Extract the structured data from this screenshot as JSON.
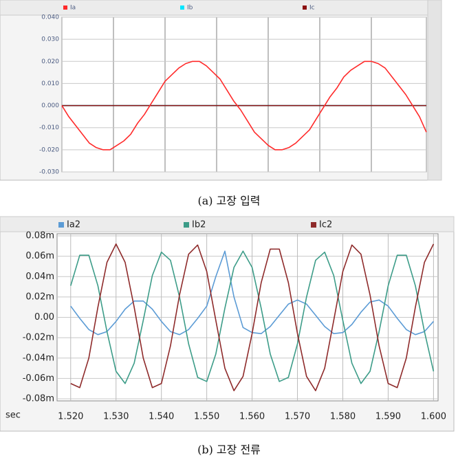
{
  "chart_data": [
    {
      "type": "line",
      "caption": "(a) 고장 입력",
      "ylim": [
        -0.03,
        0.04
      ],
      "yticks": [
        {
          "value": 0.04,
          "label": "0.040"
        },
        {
          "value": 0.03,
          "label": "0.030"
        },
        {
          "value": 0.02,
          "label": "0.020"
        },
        {
          "value": 0.01,
          "label": "0.010"
        },
        {
          "value": 0,
          "label": "0.000"
        },
        {
          "value": -0.01,
          "label": "-0.010"
        },
        {
          "value": -0.02,
          "label": "-0.020"
        },
        {
          "value": -0.03,
          "label": "-0.030"
        }
      ],
      "grid": true,
      "series": [
        {
          "name": "Ib",
          "color": "#00e5ff",
          "values": [
            0,
            0,
            0,
            0,
            0,
            0,
            0,
            0,
            0,
            0,
            0,
            0,
            0,
            0,
            0,
            0,
            0,
            0,
            0,
            0,
            0,
            0,
            0,
            0,
            0,
            0,
            0,
            0,
            0,
            0,
            0,
            0,
            0,
            0,
            0,
            0,
            0,
            0,
            0,
            0,
            0,
            0,
            0,
            0,
            0,
            0,
            0,
            0,
            0,
            0,
            0,
            0,
            0,
            0
          ]
        },
        {
          "name": "Ic",
          "color": "#8b1010",
          "values": [
            0,
            0,
            0,
            0,
            0,
            0,
            0,
            0,
            0,
            0,
            0,
            0,
            0,
            0,
            0,
            0,
            0,
            0,
            0,
            0,
            0,
            0,
            0,
            0,
            0,
            0,
            0,
            0,
            0,
            0,
            0,
            0,
            0,
            0,
            0,
            0,
            0,
            0,
            0,
            0,
            0,
            0,
            0,
            0,
            0,
            0,
            0,
            0,
            0,
            0,
            0,
            0,
            0,
            0
          ]
        },
        {
          "name": "Ia",
          "color": "#ff2a2a",
          "values": [
            0,
            -0.005,
            -0.009,
            -0.013,
            -0.017,
            -0.019,
            -0.02,
            -0.02,
            -0.018,
            -0.016,
            -0.013,
            -0.008,
            -0.004,
            0.001,
            0.006,
            0.011,
            0.014,
            0.017,
            0.019,
            0.02,
            0.02,
            0.018,
            0.015,
            0.012,
            0.007,
            0.002,
            -0.002,
            -0.007,
            -0.012,
            -0.015,
            -0.018,
            -0.02,
            -0.02,
            -0.019,
            -0.017,
            -0.014,
            -0.011,
            -0.006,
            -0.001,
            0.004,
            0.008,
            0.013,
            0.016,
            0.018,
            0.02,
            0.02,
            0.019,
            0.017,
            0.013,
            0.009,
            0.005,
            0,
            -0.005,
            -0.012
          ]
        }
      ]
    },
    {
      "type": "line",
      "caption": "(b) 고장 전류",
      "xlabel": "sec",
      "xlim": [
        1.517,
        1.601
      ],
      "ylim": [
        -0.08,
        0.08
      ],
      "xticks": [
        {
          "value": 1.52,
          "label": "1.520"
        },
        {
          "value": 1.53,
          "label": "1.530"
        },
        {
          "value": 1.54,
          "label": "1.540"
        },
        {
          "value": 1.55,
          "label": "1.550"
        },
        {
          "value": 1.56,
          "label": "1.560"
        },
        {
          "value": 1.57,
          "label": "1.570"
        },
        {
          "value": 1.58,
          "label": "1.580"
        },
        {
          "value": 1.59,
          "label": "1.590"
        },
        {
          "value": 1.6,
          "label": "1.600"
        }
      ],
      "yticks": [
        {
          "value": 0.08,
          "label": "0.08m"
        },
        {
          "value": 0.06,
          "label": "0.06m"
        },
        {
          "value": 0.04,
          "label": "0.04m"
        },
        {
          "value": 0.02,
          "label": "0.02m"
        },
        {
          "value": 0,
          "label": "0.00"
        },
        {
          "value": -0.02,
          "label": "-0.02m"
        },
        {
          "value": -0.04,
          "label": "-0.04m"
        },
        {
          "value": -0.06,
          "label": "-0.06m"
        },
        {
          "value": -0.08,
          "label": "-0.08m"
        }
      ],
      "grid": true,
      "x": [
        1.52,
        1.522,
        1.524,
        1.526,
        1.528,
        1.53,
        1.532,
        1.534,
        1.536,
        1.538,
        1.54,
        1.542,
        1.544,
        1.546,
        1.548,
        1.55,
        1.552,
        1.554,
        1.556,
        1.558,
        1.56,
        1.562,
        1.564,
        1.566,
        1.568,
        1.57,
        1.572,
        1.574,
        1.576,
        1.578,
        1.58,
        1.582,
        1.584,
        1.586,
        1.588,
        1.59,
        1.592,
        1.594,
        1.596,
        1.598,
        1.6
      ],
      "series": [
        {
          "name": "Ia2",
          "color": "#5b9bd5",
          "values": [
            0.011,
            -0.001,
            -0.012,
            -0.017,
            -0.014,
            -0.004,
            0.008,
            0.016,
            0.016,
            0.008,
            -0.004,
            -0.014,
            -0.017,
            -0.012,
            -0.001,
            0.011,
            0.04,
            0.065,
            0.02,
            -0.01,
            -0.015,
            -0.016,
            -0.009,
            0.002,
            0.013,
            0.017,
            0.013,
            0.002,
            -0.009,
            -0.016,
            -0.015,
            -0.007,
            0.005,
            0.015,
            0.017,
            0.011,
            -0.001,
            -0.012,
            -0.017,
            -0.014,
            -0.004
          ]
        },
        {
          "name": "Ib2",
          "color": "#3c9c88",
          "values": [
            0.031,
            0.061,
            0.061,
            0.031,
            -0.014,
            -0.053,
            -0.065,
            -0.045,
            -0.003,
            0.041,
            0.064,
            0.056,
            0.02,
            -0.026,
            -0.059,
            -0.063,
            -0.036,
            0.009,
            0.049,
            0.065,
            0.049,
            0.009,
            -0.036,
            -0.063,
            -0.059,
            -0.026,
            0.02,
            0.056,
            0.064,
            0.041,
            -0.003,
            -0.045,
            -0.065,
            -0.053,
            -0.014,
            0.031,
            0.061,
            0.061,
            0.031,
            -0.014,
            -0.053
          ]
        },
        {
          "name": "Ic2",
          "color": "#8e2a2a",
          "values": [
            -0.065,
            -0.069,
            -0.04,
            0.01,
            0.054,
            0.072,
            0.054,
            0.01,
            -0.04,
            -0.069,
            -0.065,
            -0.028,
            0.022,
            0.062,
            0.071,
            0.045,
            -0.003,
            -0.05,
            -0.072,
            -0.058,
            -0.016,
            0.034,
            0.067,
            0.067,
            0.034,
            -0.016,
            -0.058,
            -0.072,
            -0.05,
            -0.003,
            0.045,
            0.071,
            0.062,
            0.022,
            -0.028,
            -0.065,
            -0.069,
            -0.04,
            0.01,
            0.054,
            0.072
          ]
        }
      ]
    }
  ]
}
